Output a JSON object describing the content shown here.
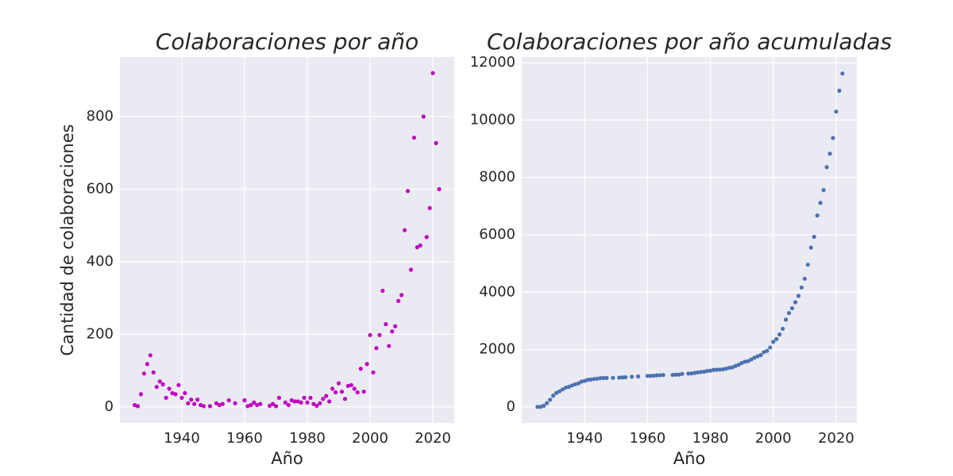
{
  "chart_data": [
    {
      "type": "scatter",
      "title": "Colaboraciones por año",
      "x_label": "Año",
      "y_label": "Cantidad de colaboraciones",
      "color": "#bf00bf",
      "grid": true,
      "xlim": [
        1920.3,
        2026.8
      ],
      "ylim": [
        -44,
        964
      ],
      "xticks": [
        1940,
        1960,
        1980,
        2000,
        2020
      ],
      "yticks": [
        0,
        200,
        400,
        600,
        800
      ],
      "x": [
        1925,
        1926,
        1927,
        1928,
        1929,
        1930,
        1931,
        1932,
        1933,
        1934,
        1935,
        1936,
        1937,
        1938,
        1939,
        1940,
        1941,
        1942,
        1943,
        1944,
        1945,
        1946,
        1947,
        1949,
        1951,
        1952,
        1953,
        1955,
        1957,
        1960,
        1961,
        1962,
        1963,
        1964,
        1965,
        1968,
        1969,
        1970,
        1971,
        1973,
        1974,
        1975,
        1976,
        1977,
        1978,
        1979,
        1980,
        1981,
        1982,
        1983,
        1984,
        1985,
        1986,
        1987,
        1988,
        1989,
        1990,
        1991,
        1992,
        1993,
        1994,
        1995,
        1996,
        1997,
        1998,
        1999,
        2000,
        2001,
        2002,
        2003,
        2004,
        2005,
        2006,
        2007,
        2008,
        2009,
        2010,
        2011,
        2012,
        2013,
        2014,
        2015,
        2016,
        2017,
        2018,
        2019,
        2020,
        2021,
        2022
      ],
      "values": [
        5,
        2,
        35,
        92,
        118,
        142,
        95,
        55,
        70,
        62,
        25,
        50,
        38,
        35,
        60,
        25,
        38,
        10,
        20,
        8,
        20,
        5,
        2,
        2,
        10,
        5,
        8,
        18,
        10,
        18,
        2,
        5,
        12,
        5,
        8,
        3,
        8,
        2,
        25,
        12,
        5,
        18,
        15,
        15,
        12,
        25,
        12,
        25,
        8,
        3,
        10,
        22,
        30,
        15,
        50,
        40,
        65,
        42,
        22,
        58,
        60,
        50,
        40,
        105,
        42,
        118,
        198,
        95,
        162,
        198,
        320,
        228,
        168,
        208,
        222,
        292,
        308,
        487,
        595,
        378,
        742,
        440,
        445,
        800,
        468,
        548,
        920,
        727,
        600
      ]
    },
    {
      "type": "scatter",
      "title": "Colaboraciones por año acumuladas",
      "x_label": "Año",
      "color": "#4c72b0",
      "grid": true,
      "xlim": [
        1920,
        2026.6
      ],
      "ylim": [
        -553,
        12193
      ],
      "xticks": [
        1940,
        1960,
        1980,
        2000,
        2020
      ],
      "yticks": [
        0,
        2000,
        4000,
        6000,
        8000,
        10000,
        12000
      ],
      "x": [
        1925,
        1926,
        1927,
        1928,
        1929,
        1930,
        1931,
        1932,
        1933,
        1934,
        1935,
        1936,
        1937,
        1938,
        1939,
        1940,
        1941,
        1942,
        1943,
        1944,
        1945,
        1946,
        1947,
        1949,
        1951,
        1952,
        1953,
        1955,
        1957,
        1960,
        1961,
        1962,
        1963,
        1964,
        1965,
        1968,
        1969,
        1970,
        1971,
        1973,
        1974,
        1975,
        1976,
        1977,
        1978,
        1979,
        1980,
        1981,
        1982,
        1983,
        1984,
        1985,
        1986,
        1987,
        1988,
        1989,
        1990,
        1991,
        1992,
        1993,
        1994,
        1995,
        1996,
        1997,
        1998,
        1999,
        2000,
        2001,
        2002,
        2003,
        2004,
        2005,
        2006,
        2007,
        2008,
        2009,
        2010,
        2011,
        2012,
        2013,
        2014,
        2015,
        2016,
        2017,
        2018,
        2019,
        2020,
        2021,
        2022
      ],
      "values": [
        5,
        7,
        42,
        134,
        252,
        394,
        489,
        544,
        614,
        676,
        701,
        751,
        789,
        824,
        884,
        909,
        947,
        957,
        977,
        985,
        1005,
        1010,
        1012,
        1014,
        1024,
        1029,
        1037,
        1055,
        1065,
        1083,
        1085,
        1090,
        1102,
        1107,
        1115,
        1118,
        1126,
        1128,
        1153,
        1165,
        1170,
        1188,
        1203,
        1218,
        1230,
        1255,
        1267,
        1292,
        1300,
        1303,
        1313,
        1335,
        1365,
        1380,
        1430,
        1470,
        1535,
        1577,
        1599,
        1657,
        1717,
        1767,
        1807,
        1912,
        1954,
        2072,
        2270,
        2365,
        2527,
        2725,
        3045,
        3273,
        3441,
        3649,
        3871,
        4163,
        4471,
        4958,
        5553,
        5931,
        6673,
        7113,
        7558,
        8358,
        8826,
        9374,
        10294,
        11021,
        11621
      ]
    }
  ]
}
